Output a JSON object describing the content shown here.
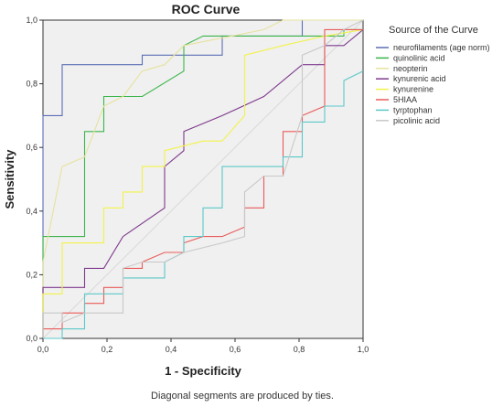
{
  "chart_data": {
    "type": "line",
    "title": "ROC Curve",
    "xlabel": "1 - Specificity",
    "ylabel": "Sensitivity",
    "xlim": [
      0,
      1
    ],
    "ylim": [
      0,
      1
    ],
    "xticks": [
      "0,0",
      "0,2",
      "0,4",
      "0,6",
      "0,8",
      "1,0"
    ],
    "yticks": [
      "0,0",
      "0,2",
      "0,4",
      "0,6",
      "0,8",
      "1,0"
    ],
    "grid": false,
    "legend_title": "Source of the Curve",
    "legend_position": "right",
    "footnote": "Diagonal segments are produced by ties.",
    "series": [
      {
        "name": "neurofilaments (age norm)",
        "color": "#5b6db5",
        "points": [
          [
            0,
            0
          ],
          [
            0,
            0.7
          ],
          [
            0.06,
            0.7
          ],
          [
            0.06,
            0.86
          ],
          [
            0.31,
            0.86
          ],
          [
            0.31,
            0.89
          ],
          [
            0.56,
            0.89
          ],
          [
            0.56,
            0.95
          ],
          [
            0.81,
            0.95
          ],
          [
            0.81,
            1
          ],
          [
            1,
            1
          ]
        ]
      },
      {
        "name": "quinolinic acid",
        "color": "#3bb54a",
        "points": [
          [
            0,
            0
          ],
          [
            0,
            0.32
          ],
          [
            0.13,
            0.32
          ],
          [
            0.13,
            0.65
          ],
          [
            0.19,
            0.65
          ],
          [
            0.19,
            0.76
          ],
          [
            0.31,
            0.76
          ],
          [
            0.44,
            0.84
          ],
          [
            0.44,
            0.92
          ],
          [
            0.5,
            0.95
          ],
          [
            0.94,
            0.95
          ],
          [
            0.94,
            0.97
          ],
          [
            1,
            0.97
          ]
        ]
      },
      {
        "name": "neopterin",
        "color": "#e6e29e",
        "points": [
          [
            0,
            0
          ],
          [
            0,
            0.24
          ],
          [
            0.06,
            0.54
          ],
          [
            0.13,
            0.57
          ],
          [
            0.19,
            0.73
          ],
          [
            0.25,
            0.76
          ],
          [
            0.31,
            0.84
          ],
          [
            0.38,
            0.86
          ],
          [
            0.44,
            0.92
          ],
          [
            0.69,
            0.97
          ],
          [
            0.75,
            1
          ],
          [
            1,
            1
          ]
        ]
      },
      {
        "name": "kynurenic acid",
        "color": "#7e3a8d",
        "points": [
          [
            0,
            0
          ],
          [
            0,
            0.16
          ],
          [
            0.13,
            0.16
          ],
          [
            0.13,
            0.22
          ],
          [
            0.19,
            0.22
          ],
          [
            0.25,
            0.32
          ],
          [
            0.38,
            0.41
          ],
          [
            0.38,
            0.54
          ],
          [
            0.44,
            0.59
          ],
          [
            0.44,
            0.65
          ],
          [
            0.56,
            0.7
          ],
          [
            0.69,
            0.76
          ],
          [
            0.81,
            0.86
          ],
          [
            0.88,
            0.86
          ],
          [
            0.88,
            0.92
          ],
          [
            0.94,
            0.92
          ],
          [
            1,
            0.97
          ]
        ]
      },
      {
        "name": "kynurenine",
        "color": "#f2f24a",
        "points": [
          [
            0,
            0
          ],
          [
            0,
            0.14
          ],
          [
            0.06,
            0.14
          ],
          [
            0.06,
            0.3
          ],
          [
            0.19,
            0.3
          ],
          [
            0.19,
            0.41
          ],
          [
            0.25,
            0.41
          ],
          [
            0.25,
            0.46
          ],
          [
            0.31,
            0.46
          ],
          [
            0.31,
            0.54
          ],
          [
            0.38,
            0.54
          ],
          [
            0.38,
            0.59
          ],
          [
            0.5,
            0.62
          ],
          [
            0.56,
            0.62
          ],
          [
            0.63,
            0.7
          ],
          [
            0.63,
            0.89
          ],
          [
            0.75,
            0.92
          ],
          [
            0.88,
            0.95
          ],
          [
            1,
            0.97
          ]
        ]
      },
      {
        "name": "5HIAA",
        "color": "#ea5a5a",
        "points": [
          [
            0,
            0
          ],
          [
            0,
            0.03
          ],
          [
            0.06,
            0.03
          ],
          [
            0.06,
            0.08
          ],
          [
            0.13,
            0.08
          ],
          [
            0.13,
            0.11
          ],
          [
            0.19,
            0.11
          ],
          [
            0.19,
            0.16
          ],
          [
            0.25,
            0.16
          ],
          [
            0.25,
            0.22
          ],
          [
            0.31,
            0.22
          ],
          [
            0.31,
            0.24
          ],
          [
            0.38,
            0.27
          ],
          [
            0.44,
            0.27
          ],
          [
            0.44,
            0.3
          ],
          [
            0.5,
            0.32
          ],
          [
            0.56,
            0.32
          ],
          [
            0.63,
            0.35
          ],
          [
            0.63,
            0.41
          ],
          [
            0.69,
            0.41
          ],
          [
            0.69,
            0.51
          ],
          [
            0.75,
            0.51
          ],
          [
            0.75,
            0.65
          ],
          [
            0.81,
            0.65
          ],
          [
            0.81,
            0.7
          ],
          [
            0.88,
            0.73
          ],
          [
            0.88,
            0.97
          ],
          [
            1,
            0.97
          ]
        ]
      },
      {
        "name": "tyrptophan",
        "color": "#5bc8c8",
        "points": [
          [
            0,
            0
          ],
          [
            0.06,
            0
          ],
          [
            0.06,
            0.03
          ],
          [
            0.13,
            0.03
          ],
          [
            0.13,
            0.14
          ],
          [
            0.25,
            0.14
          ],
          [
            0.25,
            0.19
          ],
          [
            0.38,
            0.19
          ],
          [
            0.38,
            0.24
          ],
          [
            0.44,
            0.27
          ],
          [
            0.44,
            0.32
          ],
          [
            0.5,
            0.32
          ],
          [
            0.5,
            0.41
          ],
          [
            0.56,
            0.41
          ],
          [
            0.56,
            0.54
          ],
          [
            0.75,
            0.54
          ],
          [
            0.75,
            0.57
          ],
          [
            0.81,
            0.57
          ],
          [
            0.81,
            0.68
          ],
          [
            0.88,
            0.68
          ],
          [
            0.88,
            0.73
          ],
          [
            0.94,
            0.73
          ],
          [
            0.94,
            0.81
          ],
          [
            1,
            0.84
          ]
        ]
      },
      {
        "name": "picolinic acid",
        "color": "#c8c8c8",
        "points": [
          [
            0,
            0
          ],
          [
            0,
            0.08
          ],
          [
            0.06,
            0.08
          ],
          [
            0.06,
            0.05
          ],
          [
            0.13,
            0.08
          ],
          [
            0.25,
            0.08
          ],
          [
            0.25,
            0.22
          ],
          [
            0.31,
            0.24
          ],
          [
            0.38,
            0.24
          ],
          [
            0.44,
            0.27
          ],
          [
            0.56,
            0.3
          ],
          [
            0.63,
            0.32
          ],
          [
            0.63,
            0.46
          ],
          [
            0.69,
            0.51
          ],
          [
            0.75,
            0.51
          ],
          [
            0.81,
            0.7
          ],
          [
            0.81,
            0.89
          ],
          [
            0.88,
            0.92
          ],
          [
            0.94,
            0.97
          ],
          [
            1,
            1
          ]
        ]
      }
    ]
  }
}
